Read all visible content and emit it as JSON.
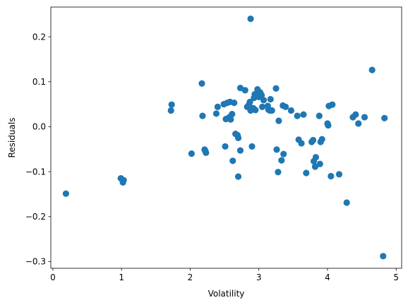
{
  "chart_data": {
    "type": "scatter",
    "title": "",
    "xlabel": "Volatility",
    "ylabel": "Residuals",
    "xlim": [
      -0.03,
      5.08
    ],
    "ylim": [
      -0.315,
      0.266
    ],
    "xticks": [
      0,
      1,
      2,
      3,
      4,
      5
    ],
    "yticks": [
      -0.3,
      -0.2,
      -0.1,
      0.0,
      0.1,
      0.2
    ],
    "ytick_labels": [
      "−0.3",
      "−0.2",
      "−0.1",
      "0.0",
      "0.1",
      "0.2"
    ],
    "grid": false,
    "marker_color": "#1f77b4",
    "series": [
      {
        "points": [
          [
            0.19,
            -0.149
          ],
          [
            0.99,
            -0.115
          ],
          [
            1.02,
            -0.124
          ],
          [
            1.03,
            -0.119
          ],
          [
            1.72,
            0.036
          ],
          [
            1.73,
            0.049
          ],
          [
            2.02,
            -0.06
          ],
          [
            2.17,
            0.096
          ],
          [
            2.18,
            0.024
          ],
          [
            2.21,
            -0.051
          ],
          [
            2.22,
            -0.054
          ],
          [
            2.23,
            -0.058
          ],
          [
            2.38,
            0.029
          ],
          [
            2.4,
            0.044
          ],
          [
            2.49,
            0.05
          ],
          [
            2.51,
            -0.044
          ],
          [
            2.52,
            0.017
          ],
          [
            2.54,
            0.053
          ],
          [
            2.57,
            0.021
          ],
          [
            2.58,
            0.055
          ],
          [
            2.59,
            0.016
          ],
          [
            2.61,
            0.028
          ],
          [
            2.62,
            -0.076
          ],
          [
            2.64,
            0.053
          ],
          [
            2.66,
            -0.016
          ],
          [
            2.69,
            -0.019
          ],
          [
            2.7,
            -0.025
          ],
          [
            2.7,
            -0.111
          ],
          [
            2.73,
            0.086
          ],
          [
            2.73,
            -0.053
          ],
          [
            2.8,
            0.081
          ],
          [
            2.83,
            0.044
          ],
          [
            2.86,
            0.05
          ],
          [
            2.87,
            0.055
          ],
          [
            2.88,
            0.036
          ],
          [
            2.88,
            0.24
          ],
          [
            2.9,
            -0.044
          ],
          [
            2.92,
            0.041
          ],
          [
            2.93,
            0.064
          ],
          [
            2.94,
            0.072
          ],
          [
            2.95,
            0.037
          ],
          [
            2.98,
            0.083
          ],
          [
            3.0,
            0.066
          ],
          [
            3.02,
            0.076
          ],
          [
            3.04,
            0.07
          ],
          [
            3.05,
            0.044
          ],
          [
            3.07,
            0.059
          ],
          [
            3.13,
            0.046
          ],
          [
            3.14,
            0.038
          ],
          [
            3.16,
            0.036
          ],
          [
            3.17,
            0.061
          ],
          [
            3.19,
            0.036
          ],
          [
            3.25,
            0.085
          ],
          [
            3.26,
            -0.051
          ],
          [
            3.28,
            -0.101
          ],
          [
            3.29,
            0.013
          ],
          [
            3.33,
            -0.075
          ],
          [
            3.35,
            0.047
          ],
          [
            3.36,
            -0.061
          ],
          [
            3.39,
            0.044
          ],
          [
            3.47,
            0.036
          ],
          [
            3.56,
            0.024
          ],
          [
            3.58,
            -0.029
          ],
          [
            3.62,
            -0.037
          ],
          [
            3.65,
            0.027
          ],
          [
            3.69,
            -0.103
          ],
          [
            3.77,
            -0.034
          ],
          [
            3.79,
            -0.03
          ],
          [
            3.8,
            -0.077
          ],
          [
            3.82,
            -0.089
          ],
          [
            3.83,
            -0.068
          ],
          [
            3.88,
            0.024
          ],
          [
            3.89,
            -0.083
          ],
          [
            3.9,
            -0.034
          ],
          [
            3.92,
            -0.028
          ],
          [
            4.0,
            0.007
          ],
          [
            4.01,
            0.003
          ],
          [
            4.02,
            0.046
          ],
          [
            4.05,
            -0.11
          ],
          [
            4.07,
            0.049
          ],
          [
            4.17,
            -0.106
          ],
          [
            4.28,
            -0.169
          ],
          [
            4.37,
            0.021
          ],
          [
            4.41,
            0.027
          ],
          [
            4.45,
            0.007
          ],
          [
            4.54,
            0.021
          ],
          [
            4.65,
            0.126
          ],
          [
            4.81,
            -0.288
          ],
          [
            4.83,
            0.019
          ]
        ]
      }
    ]
  }
}
